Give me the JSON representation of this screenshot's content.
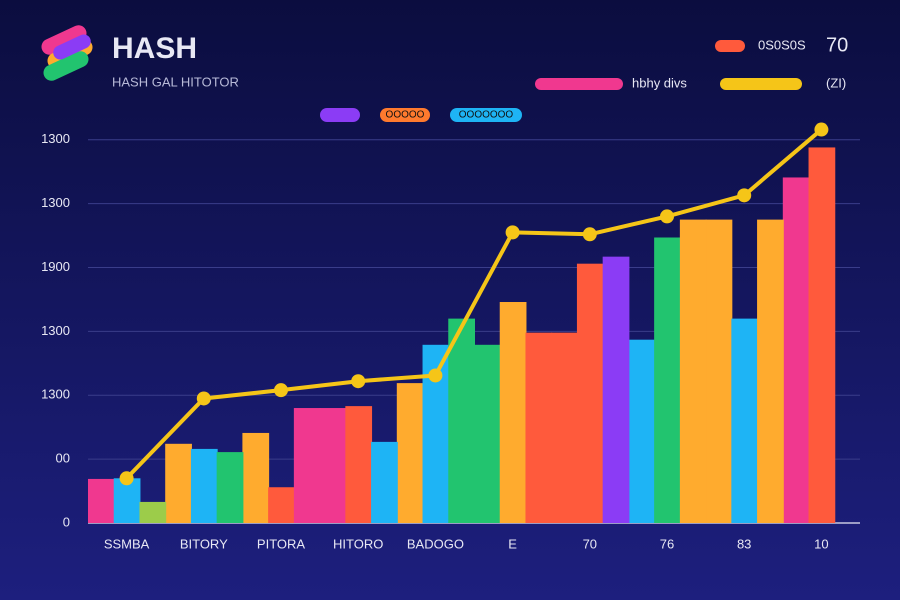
{
  "chart_data": {
    "type": "bar",
    "title": "HASH",
    "subtitle": "HASH GAL HITOTOR",
    "annotation": "70",
    "legend": [
      {
        "label": "0S0S0S",
        "color": "#ff5a3c"
      },
      {
        "label": "hbhy divs",
        "color": "#f0388f"
      },
      {
        "label": "(ZI)",
        "color": "#f5c518"
      }
    ],
    "pills": [
      {
        "label": "OOOOO",
        "color": "#ff7a2e"
      },
      {
        "label": "OOOOOOO",
        "color": "#1eb4f5"
      }
    ],
    "categories": [
      "SSMBA",
      "BITORY",
      "PITORA",
      "HITORO",
      "BADOGO",
      "E",
      "70",
      "76",
      "83",
      "10"
    ],
    "series": [
      {
        "values": [
          69,
          124,
          141,
          180,
          219,
          279,
          298,
          287,
          475,
          541
        ],
        "colors": [
          "#f0388f",
          "#ffab2e",
          "#ffab2e",
          "#f0388f",
          "#ffab2e",
          "#22c46f",
          "#ff5a3c",
          "#1eb4f5",
          "#ffab2e",
          "#f0388f"
        ]
      },
      {
        "values": [
          70,
          116,
          56,
          183,
          279,
          346,
          406,
          447,
          320,
          588
        ],
        "colors": [
          "#1eb4f5",
          "#1eb4f5",
          "#ff5a3c",
          "#ff5a3c",
          "#1eb4f5",
          "#ffab2e",
          "#ff5a3c",
          "#22c46f",
          "#1eb4f5",
          "#ff5a3c"
        ]
      },
      {
        "values": [
          33,
          111,
          180,
          127,
          320,
          298,
          417,
          475,
          475,
          null
        ],
        "colors": [
          "#9ccc4a",
          "#22c46f",
          "#f0388f",
          "#1eb4f5",
          "#22c46f",
          "#ff5a3c",
          "#8b3cf5",
          "#ffab2e",
          "#ffab2e",
          null
        ]
      },
      {
        "type": "line",
        "color": "#f5c518",
        "values": [
          70,
          195,
          208,
          222,
          231,
          455,
          452,
          480,
          513,
          616
        ]
      }
    ],
    "ylim": [
      0,
      620
    ],
    "yticks": [
      0,
      {
        "value": 100,
        "label": "00"
      },
      {
        "value": 200,
        "label": "1300"
      },
      {
        "value": 300,
        "label": "1300"
      },
      {
        "value": 400,
        "label": "1900"
      },
      {
        "value": 500,
        "label": "1300"
      },
      {
        "value": 600,
        "label": "1300"
      }
    ],
    "grid": true
  }
}
